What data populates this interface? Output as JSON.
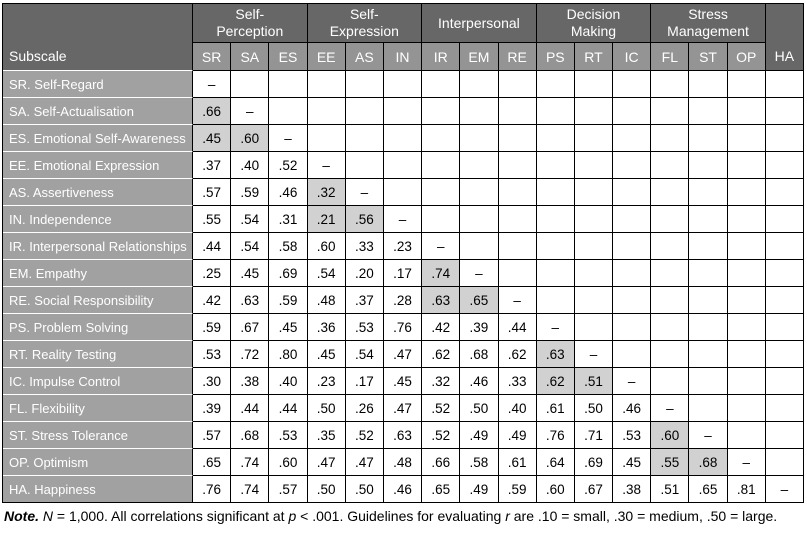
{
  "colors": {
    "header_dark": "#676767",
    "header_medium": "#949494",
    "row_label_bg": "#a1a1a1",
    "shaded_cell_bg": "#d1d1d1",
    "grid_border": "#000000",
    "label_separator": "#ffffff",
    "header_text": "#ffffff",
    "value_text": "#000000"
  },
  "table": {
    "corner_header": "Subscale",
    "column_groups": [
      {
        "label": "Self-Perception",
        "lines": [
          "Self-",
          "Perception"
        ],
        "span": 3
      },
      {
        "label": "Self-Expression",
        "lines": [
          "Self-",
          "Expression"
        ],
        "span": 3
      },
      {
        "label": "Interpersonal",
        "lines": [
          "Interpersonal"
        ],
        "span": 3
      },
      {
        "label": "Decision Making",
        "lines": [
          "Decision",
          "Making"
        ],
        "span": 3
      },
      {
        "label": "Stress Management",
        "lines": [
          "Stress",
          "Management"
        ],
        "span": 3
      }
    ],
    "columns": [
      "SR",
      "SA",
      "ES",
      "EE",
      "AS",
      "IN",
      "IR",
      "EM",
      "RE",
      "PS",
      "RT",
      "IC",
      "FL",
      "ST",
      "OP",
      "HA"
    ],
    "ungrouped_column": "HA",
    "diagonal_marker": "–",
    "rows": [
      {
        "label": "SR. Self-Regard",
        "values": [],
        "shaded": []
      },
      {
        "label": "SA. Self-Actualisation",
        "values": [
          ".66"
        ],
        "shaded": [
          0
        ]
      },
      {
        "label": "ES. Emotional Self-Awareness",
        "values": [
          ".45",
          ".60"
        ],
        "shaded": [
          0,
          1
        ]
      },
      {
        "label": "EE. Emotional Expression",
        "values": [
          ".37",
          ".40",
          ".52"
        ],
        "shaded": []
      },
      {
        "label": "AS. Assertiveness",
        "values": [
          ".57",
          ".59",
          ".46",
          ".32"
        ],
        "shaded": [
          3
        ]
      },
      {
        "label": "IN. Independence",
        "values": [
          ".55",
          ".54",
          ".31",
          ".21",
          ".56"
        ],
        "shaded": [
          3,
          4
        ]
      },
      {
        "label": "IR. Interpersonal Relationships",
        "values": [
          ".44",
          ".54",
          ".58",
          ".60",
          ".33",
          ".23"
        ],
        "shaded": []
      },
      {
        "label": "EM. Empathy",
        "values": [
          ".25",
          ".45",
          ".69",
          ".54",
          ".20",
          ".17",
          ".74"
        ],
        "shaded": [
          6
        ]
      },
      {
        "label": "RE. Social Responsibility",
        "values": [
          ".42",
          ".63",
          ".59",
          ".48",
          ".37",
          ".28",
          ".63",
          ".65"
        ],
        "shaded": [
          6,
          7
        ]
      },
      {
        "label": "PS. Problem Solving",
        "values": [
          ".59",
          ".67",
          ".45",
          ".36",
          ".53",
          ".76",
          ".42",
          ".39",
          ".44"
        ],
        "shaded": []
      },
      {
        "label": "RT. Reality Testing",
        "values": [
          ".53",
          ".72",
          ".80",
          ".45",
          ".54",
          ".47",
          ".62",
          ".68",
          ".62",
          ".63"
        ],
        "shaded": [
          9
        ]
      },
      {
        "label": "IC. Impulse Control",
        "values": [
          ".30",
          ".38",
          ".40",
          ".23",
          ".17",
          ".45",
          ".32",
          ".46",
          ".33",
          ".62",
          ".51"
        ],
        "shaded": [
          9,
          10
        ]
      },
      {
        "label": "FL. Flexibility",
        "values": [
          ".39",
          ".44",
          ".44",
          ".50",
          ".26",
          ".47",
          ".52",
          ".50",
          ".40",
          ".61",
          ".50",
          ".46"
        ],
        "shaded": []
      },
      {
        "label": "ST. Stress Tolerance",
        "values": [
          ".57",
          ".68",
          ".53",
          ".35",
          ".52",
          ".63",
          ".52",
          ".49",
          ".49",
          ".76",
          ".71",
          ".53",
          ".60"
        ],
        "shaded": [
          12
        ]
      },
      {
        "label": "OP. Optimism",
        "values": [
          ".65",
          ".74",
          ".60",
          ".47",
          ".47",
          ".48",
          ".66",
          ".58",
          ".61",
          ".64",
          ".69",
          ".45",
          ".55",
          ".68"
        ],
        "shaded": [
          12,
          13
        ]
      },
      {
        "label": "HA. Happiness",
        "values": [
          ".76",
          ".74",
          ".57",
          ".50",
          ".50",
          ".46",
          ".65",
          ".49",
          ".59",
          ".60",
          ".67",
          ".38",
          ".51",
          ".65",
          ".81"
        ],
        "shaded": []
      }
    ]
  },
  "note": {
    "segments": [
      {
        "text": "Note.",
        "style": "bold-italic"
      },
      {
        "text": " ",
        "style": "normal"
      },
      {
        "text": "N",
        "style": "italic"
      },
      {
        "text": " = 1,000. All correlations significant at ",
        "style": "normal"
      },
      {
        "text": "p",
        "style": "italic"
      },
      {
        "text": " < .001. Guidelines for evaluating ",
        "style": "normal"
      },
      {
        "text": "r",
        "style": "italic"
      },
      {
        "text": " are .10 = small, .30 = medium, .50 = large.",
        "style": "normal"
      }
    ]
  }
}
